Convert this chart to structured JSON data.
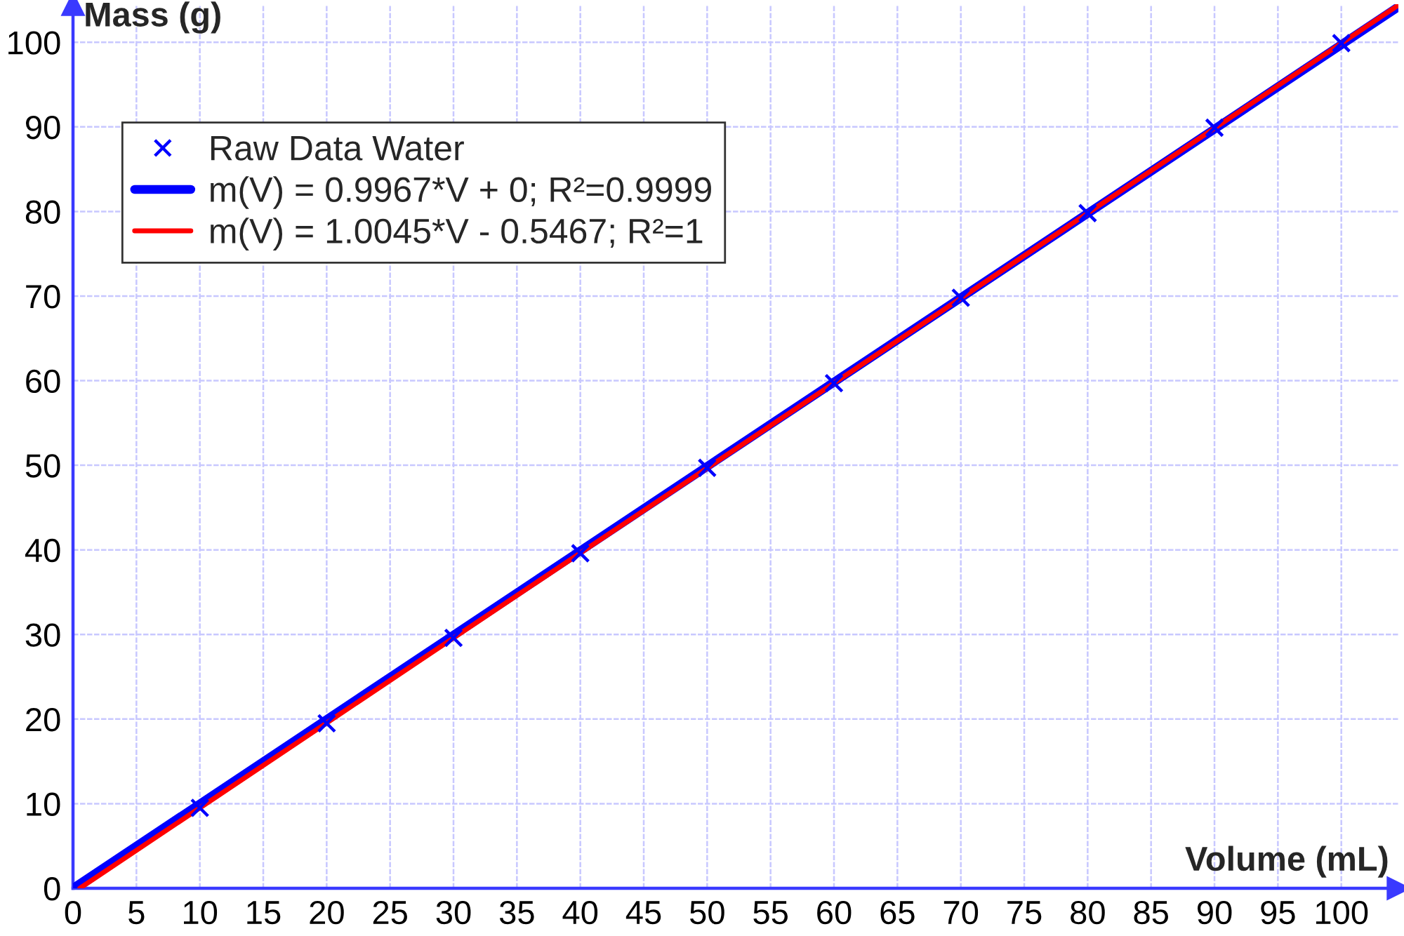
{
  "chart_data": {
    "type": "scatter",
    "xlabel": "Volume (mL)",
    "ylabel": "Mass (g)",
    "xlim": [
      0,
      104.5
    ],
    "ylim": [
      0,
      104.5
    ],
    "xticks": [
      0,
      5,
      10,
      15,
      20,
      25,
      30,
      35,
      40,
      45,
      50,
      55,
      60,
      65,
      70,
      75,
      80,
      85,
      90,
      95,
      100
    ],
    "yticks": [
      0,
      10,
      20,
      30,
      40,
      50,
      60,
      70,
      80,
      90,
      100
    ],
    "grid": true,
    "legend": "top left",
    "series": [
      {
        "name": "Raw Data Water",
        "marker": "cross",
        "color": "#0000ff",
        "x": [
          10,
          20,
          30,
          40,
          50,
          60,
          70,
          80,
          90,
          100
        ],
        "values": [
          9.5,
          19.5,
          29.6,
          39.6,
          49.7,
          59.7,
          69.8,
          79.8,
          89.9,
          99.9
        ]
      },
      {
        "name": "m(V) = 0.9967*V + 0; R²=0.9999",
        "type": "line",
        "line_style": "solid",
        "color": "#0000ff",
        "x": [
          0,
          104.5
        ],
        "values": [
          0,
          104.2
        ]
      },
      {
        "name": "m(V) = 1.0045*V - 0.5467; R²=1",
        "type": "line",
        "line_style": "solid",
        "color": "#ff0000",
        "x": [
          0.54,
          104.5
        ],
        "values": [
          0,
          104.4
        ]
      }
    ]
  }
}
